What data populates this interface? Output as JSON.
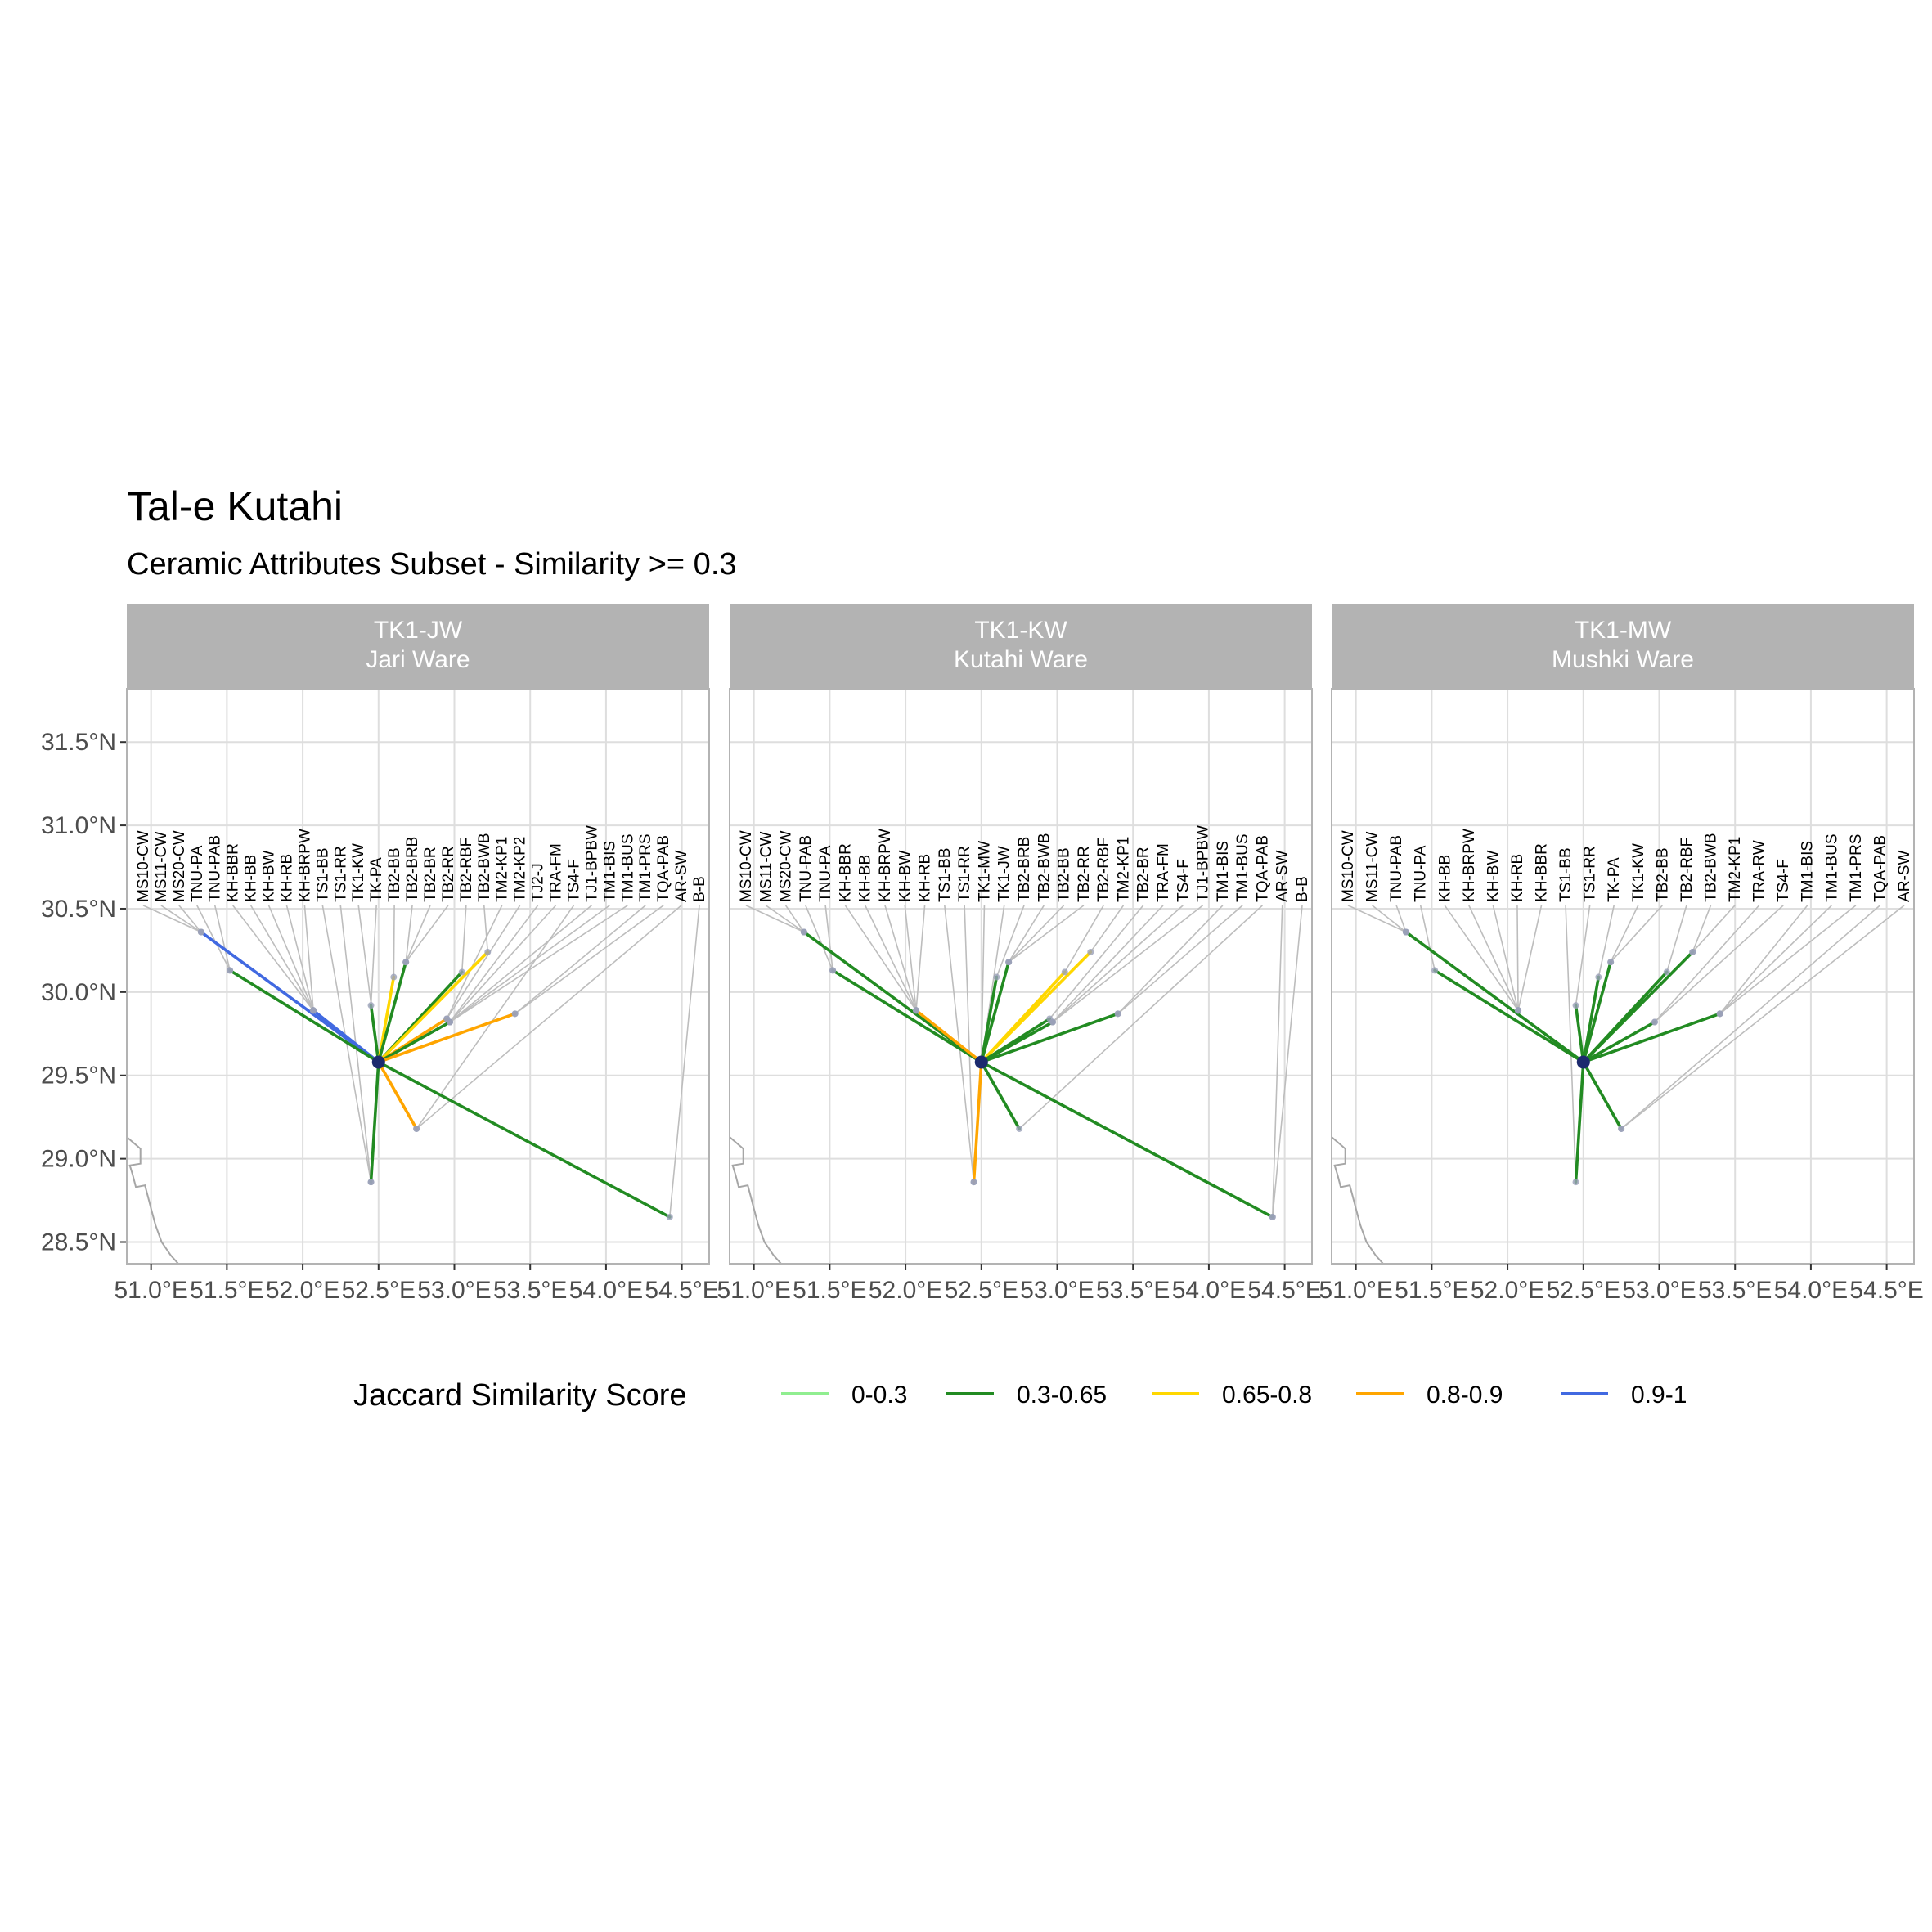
{
  "title": "Tal-e Kutahi",
  "subtitle": "Ceramic Attributes Subset - Similarity >= 0.3",
  "chart_data": {
    "type": "map",
    "x_ticks": [
      "51.0°E",
      "51.5°E",
      "52.0°E",
      "52.5°E",
      "53.0°E",
      "53.5°E",
      "54.0°E",
      "54.5°E"
    ],
    "x_tick_values": [
      51.0,
      51.5,
      52.0,
      52.5,
      53.0,
      53.5,
      54.0,
      54.5
    ],
    "y_ticks": [
      "31.5°N",
      "31.0°N",
      "30.5°N",
      "30.0°N",
      "29.5°N",
      "29.0°N",
      "28.5°N"
    ],
    "y_tick_values": [
      31.5,
      31.0,
      30.5,
      30.0,
      29.5,
      29.0,
      28.5
    ],
    "xlim": [
      50.84,
      54.68
    ],
    "ylim": [
      28.37,
      31.82
    ],
    "label_row_lat": 30.52,
    "legend": {
      "title": "Jaccard Similarity Score",
      "position": "bottom",
      "entries": [
        {
          "label": "0-0.3",
          "color": "#90ee90"
        },
        {
          "label": "0.3-0.65",
          "color": "#228b22"
        },
        {
          "label": "0.65-0.8",
          "color": "#ffd700"
        },
        {
          "label": "0.8-0.9",
          "color": "#ffa500"
        },
        {
          "label": "0.9-1",
          "color": "#4169e1"
        }
      ]
    },
    "colors": {
      "strip_bg": "#b3b3b3",
      "grid": "#dedede",
      "leader_line": "#bdbdbd",
      "coast": "#a6a6a6",
      "origin": "#1c2a6e",
      "site_point": "#9aa0b8"
    },
    "coastline": [
      [
        50.84,
        29.13
      ],
      [
        50.93,
        29.06
      ],
      [
        50.93,
        28.97
      ],
      [
        50.86,
        28.96
      ],
      [
        50.88,
        28.9
      ],
      [
        50.9,
        28.83
      ],
      [
        50.96,
        28.84
      ],
      [
        50.98,
        28.77
      ],
      [
        51.0,
        28.7
      ],
      [
        51.03,
        28.6
      ],
      [
        51.07,
        28.5
      ],
      [
        51.13,
        28.42
      ],
      [
        51.18,
        28.37
      ]
    ],
    "panels": [
      {
        "code": "TK1-JW",
        "ware": "Jari Ware",
        "origin": [
          52.5,
          29.58
        ],
        "sites": [
          {
            "label": "MS10-CW",
            "lon": 51.33,
            "lat": 30.36
          },
          {
            "label": "MS11-CW",
            "lon": 51.33,
            "lat": 30.36
          },
          {
            "label": "MS20-CW",
            "lon": 51.33,
            "lat": 30.36
          },
          {
            "label": "TNU-PA",
            "lon": 51.52,
            "lat": 30.13
          },
          {
            "label": "TNU-PAB",
            "lon": 51.52,
            "lat": 30.13
          },
          {
            "label": "KH-BBR",
            "lon": 52.07,
            "lat": 29.89
          },
          {
            "label": "KH-BB",
            "lon": 52.07,
            "lat": 29.89
          },
          {
            "label": "KH-BW",
            "lon": 52.07,
            "lat": 29.89
          },
          {
            "label": "KH-RB",
            "lon": 52.07,
            "lat": 29.89
          },
          {
            "label": "KH-BRPW",
            "lon": 52.07,
            "lat": 29.89
          },
          {
            "label": "TS1-BB",
            "lon": 52.45,
            "lat": 28.86
          },
          {
            "label": "TS1-RR",
            "lon": 52.45,
            "lat": 28.86
          },
          {
            "label": "TK1-KW",
            "lon": 52.5,
            "lat": 29.58
          },
          {
            "label": "TK-PA",
            "lon": 52.45,
            "lat": 29.92
          },
          {
            "label": "TB2-BB",
            "lon": 52.6,
            "lat": 30.09
          },
          {
            "label": "TB2-BRB",
            "lon": 52.68,
            "lat": 30.18
          },
          {
            "label": "TB2-BR",
            "lon": 52.68,
            "lat": 30.18
          },
          {
            "label": "TB2-RR",
            "lon": 52.68,
            "lat": 30.18
          },
          {
            "label": "TB2-RBF",
            "lon": 53.05,
            "lat": 30.12
          },
          {
            "label": "TB2-BWB",
            "lon": 53.22,
            "lat": 30.24
          },
          {
            "label": "TM2-KP1",
            "lon": 52.95,
            "lat": 29.84
          },
          {
            "label": "TM2-KP2",
            "lon": 52.95,
            "lat": 29.84
          },
          {
            "label": "TJ2-J",
            "lon": 52.97,
            "lat": 29.82
          },
          {
            "label": "TRA-FM",
            "lon": 52.97,
            "lat": 29.82
          },
          {
            "label": "TS4-F",
            "lon": 52.75,
            "lat": 29.18
          },
          {
            "label": "TJ1-BPBW",
            "lon": 52.97,
            "lat": 29.82
          },
          {
            "label": "TM1-BIS",
            "lon": 52.97,
            "lat": 29.82
          },
          {
            "label": "TM1-BUS",
            "lon": 52.97,
            "lat": 29.82
          },
          {
            "label": "TM1-PRS",
            "lon": 53.4,
            "lat": 29.87
          },
          {
            "label": "TQA-PAB",
            "lon": 53.4,
            "lat": 29.87
          },
          {
            "label": "AR-SW",
            "lon": 52.75,
            "lat": 29.18
          },
          {
            "label": "B-B",
            "lon": 54.42,
            "lat": 28.65
          }
        ],
        "links": [
          {
            "to": [
              51.33,
              30.36
            ],
            "band": "0.9-1"
          },
          {
            "to": [
              52.07,
              29.89
            ],
            "band": "0.9-1"
          },
          {
            "to": [
              51.52,
              30.13
            ],
            "band": "0.3-0.65"
          },
          {
            "to": [
              52.45,
              29.92
            ],
            "band": "0.3-0.65"
          },
          {
            "to": [
              52.45,
              28.86
            ],
            "band": "0.3-0.65"
          },
          {
            "to": [
              52.6,
              30.09
            ],
            "band": "0.65-0.8"
          },
          {
            "to": [
              52.68,
              30.18
            ],
            "band": "0.3-0.65"
          },
          {
            "to": [
              53.05,
              30.12
            ],
            "band": "0.3-0.65"
          },
          {
            "to": [
              53.22,
              30.24
            ],
            "band": "0.65-0.8"
          },
          {
            "to": [
              52.95,
              29.84
            ],
            "band": "0.8-0.9"
          },
          {
            "to": [
              52.97,
              29.82
            ],
            "band": "0.3-0.65"
          },
          {
            "to": [
              53.4,
              29.87
            ],
            "band": "0.8-0.9"
          },
          {
            "to": [
              52.75,
              29.18
            ],
            "band": "0.8-0.9"
          },
          {
            "to": [
              54.42,
              28.65
            ],
            "band": "0.3-0.65"
          }
        ]
      },
      {
        "code": "TK1-KW",
        "ware": "Kutahi Ware",
        "origin": [
          52.5,
          29.58
        ],
        "sites": [
          {
            "label": "MS10-CW",
            "lon": 51.33,
            "lat": 30.36
          },
          {
            "label": "MS11-CW",
            "lon": 51.33,
            "lat": 30.36
          },
          {
            "label": "MS20-CW",
            "lon": 51.33,
            "lat": 30.36
          },
          {
            "label": "TNU-PAB",
            "lon": 51.52,
            "lat": 30.13
          },
          {
            "label": "TNU-PA",
            "lon": 51.52,
            "lat": 30.13
          },
          {
            "label": "KH-BBR",
            "lon": 52.07,
            "lat": 29.89
          },
          {
            "label": "KH-BB",
            "lon": 52.07,
            "lat": 29.89
          },
          {
            "label": "KH-BRPW",
            "lon": 52.07,
            "lat": 29.89
          },
          {
            "label": "KH-BW",
            "lon": 52.07,
            "lat": 29.89
          },
          {
            "label": "KH-RB",
            "lon": 52.07,
            "lat": 29.89
          },
          {
            "label": "TS1-BB",
            "lon": 52.45,
            "lat": 28.86
          },
          {
            "label": "TS1-RR",
            "lon": 52.45,
            "lat": 28.86
          },
          {
            "label": "TK1-MW",
            "lon": 52.5,
            "lat": 29.58
          },
          {
            "label": "TK1-JW",
            "lon": 52.5,
            "lat": 29.58
          },
          {
            "label": "TB2-BRB",
            "lon": 52.6,
            "lat": 30.09
          },
          {
            "label": "TB2-BWB",
            "lon": 52.68,
            "lat": 30.18
          },
          {
            "label": "TB2-BB",
            "lon": 52.68,
            "lat": 30.18
          },
          {
            "label": "TB2-RR",
            "lon": 52.68,
            "lat": 30.18
          },
          {
            "label": "TB2-RBF",
            "lon": 53.05,
            "lat": 30.12
          },
          {
            "label": "TM2-KP1",
            "lon": 53.22,
            "lat": 30.24
          },
          {
            "label": "TB2-BR",
            "lon": 52.95,
            "lat": 29.84
          },
          {
            "label": "TRA-FM",
            "lon": 52.97,
            "lat": 29.82
          },
          {
            "label": "TS4-F",
            "lon": 52.97,
            "lat": 29.82
          },
          {
            "label": "TJ1-BPBW",
            "lon": 52.97,
            "lat": 29.82
          },
          {
            "label": "TM1-BIS",
            "lon": 53.4,
            "lat": 29.87
          },
          {
            "label": "TM1-BUS",
            "lon": 53.4,
            "lat": 29.87
          },
          {
            "label": "TQA-PAB",
            "lon": 52.75,
            "lat": 29.18
          },
          {
            "label": "AR-SW",
            "lon": 54.42,
            "lat": 28.65
          },
          {
            "label": "B-B",
            "lon": 54.42,
            "lat": 28.65
          }
        ],
        "links": [
          {
            "to": [
              51.33,
              30.36
            ],
            "band": "0.3-0.65"
          },
          {
            "to": [
              51.52,
              30.13
            ],
            "band": "0.3-0.65"
          },
          {
            "to": [
              52.07,
              29.89
            ],
            "band": "0.8-0.9"
          },
          {
            "to": [
              52.45,
              28.86
            ],
            "band": "0.8-0.9"
          },
          {
            "to": [
              52.6,
              30.09
            ],
            "band": "0.3-0.65"
          },
          {
            "to": [
              52.68,
              30.18
            ],
            "band": "0.3-0.65"
          },
          {
            "to": [
              53.05,
              30.12
            ],
            "band": "0.65-0.8"
          },
          {
            "to": [
              53.22,
              30.24
            ],
            "band": "0.65-0.8"
          },
          {
            "to": [
              52.95,
              29.84
            ],
            "band": "0.3-0.65"
          },
          {
            "to": [
              52.97,
              29.82
            ],
            "band": "0.3-0.65"
          },
          {
            "to": [
              53.4,
              29.87
            ],
            "band": "0.3-0.65"
          },
          {
            "to": [
              52.75,
              29.18
            ],
            "band": "0.3-0.65"
          },
          {
            "to": [
              54.42,
              28.65
            ],
            "band": "0.3-0.65"
          }
        ]
      },
      {
        "code": "TK1-MW",
        "ware": "Mushki Ware",
        "origin": [
          52.5,
          29.58
        ],
        "sites": [
          {
            "label": "MS10-CW",
            "lon": 51.33,
            "lat": 30.36
          },
          {
            "label": "MS11-CW",
            "lon": 51.33,
            "lat": 30.36
          },
          {
            "label": "TNU-PAB",
            "lon": 51.33,
            "lat": 30.36
          },
          {
            "label": "TNU-PA",
            "lon": 51.52,
            "lat": 30.13
          },
          {
            "label": "KH-BB",
            "lon": 52.07,
            "lat": 29.89
          },
          {
            "label": "KH-BRPW",
            "lon": 52.07,
            "lat": 29.89
          },
          {
            "label": "KH-BW",
            "lon": 52.07,
            "lat": 29.89
          },
          {
            "label": "KH-RB",
            "lon": 52.07,
            "lat": 29.89
          },
          {
            "label": "KH-BBR",
            "lon": 52.07,
            "lat": 29.89
          },
          {
            "label": "TS1-BB",
            "lon": 52.45,
            "lat": 28.86
          },
          {
            "label": "TS1-RR",
            "lon": 52.45,
            "lat": 29.92
          },
          {
            "label": "TK-PA",
            "lon": 52.6,
            "lat": 30.09
          },
          {
            "label": "TK1-KW",
            "lon": 52.68,
            "lat": 30.18
          },
          {
            "label": "TB2-BB",
            "lon": 52.68,
            "lat": 30.18
          },
          {
            "label": "TB2-RBF",
            "lon": 53.05,
            "lat": 30.12
          },
          {
            "label": "TB2-BWB",
            "lon": 53.22,
            "lat": 30.24
          },
          {
            "label": "TM2-KP1",
            "lon": 53.22,
            "lat": 30.24
          },
          {
            "label": "TRA-RW",
            "lon": 52.97,
            "lat": 29.82
          },
          {
            "label": "TS4-F",
            "lon": 52.97,
            "lat": 29.82
          },
          {
            "label": "TM1-BIS",
            "lon": 53.4,
            "lat": 29.87
          },
          {
            "label": "TM1-BUS",
            "lon": 53.4,
            "lat": 29.87
          },
          {
            "label": "TM1-PRS",
            "lon": 53.4,
            "lat": 29.87
          },
          {
            "label": "TQA-PAB",
            "lon": 52.75,
            "lat": 29.18
          },
          {
            "label": "AR-SW",
            "lon": 52.75,
            "lat": 29.18
          }
        ],
        "links": [
          {
            "to": [
              51.33,
              30.36
            ],
            "band": "0.3-0.65"
          },
          {
            "to": [
              51.52,
              30.13
            ],
            "band": "0.3-0.65"
          },
          {
            "to": [
              52.45,
              29.92
            ],
            "band": "0.3-0.65"
          },
          {
            "to": [
              52.45,
              28.86
            ],
            "band": "0.3-0.65"
          },
          {
            "to": [
              52.6,
              30.09
            ],
            "band": "0.3-0.65"
          },
          {
            "to": [
              52.68,
              30.18
            ],
            "band": "0.3-0.65"
          },
          {
            "to": [
              53.05,
              30.12
            ],
            "band": "0.3-0.65"
          },
          {
            "to": [
              53.22,
              30.24
            ],
            "band": "0.3-0.65"
          },
          {
            "to": [
              52.97,
              29.82
            ],
            "band": "0.3-0.65"
          },
          {
            "to": [
              53.4,
              29.87
            ],
            "band": "0.3-0.65"
          },
          {
            "to": [
              52.75,
              29.18
            ],
            "band": "0.3-0.65"
          }
        ]
      }
    ]
  }
}
